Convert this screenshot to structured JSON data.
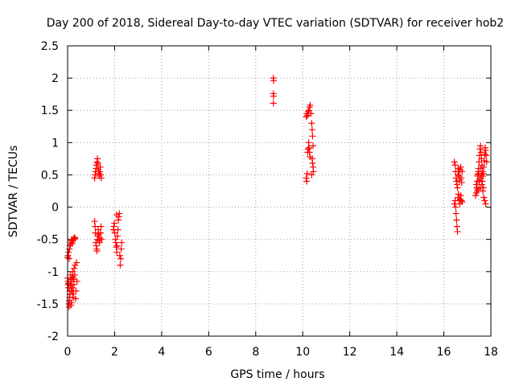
{
  "chart_data": {
    "type": "scatter",
    "title": "Day 200 of 2018, Sidereal Day-to-day VTEC variation (SDTVAR) for receiver hob2",
    "xlabel": "GPS time / hours",
    "ylabel": "SDTVAR / TECUs",
    "xlim": [
      0,
      18
    ],
    "ylim": [
      -2,
      2.5
    ],
    "xticks": [
      0,
      2,
      4,
      6,
      8,
      10,
      12,
      14,
      16,
      18
    ],
    "yticks": [
      -2,
      -1.5,
      -1,
      -0.5,
      0,
      0.5,
      1,
      1.5,
      2,
      2.5
    ],
    "xtick_labels": [
      "0",
      "2",
      "4",
      "6",
      "8",
      "10",
      "12",
      "14",
      "16",
      "18"
    ],
    "ytick_labels": [
      "-2",
      "-1.5",
      "-1",
      "-0.5",
      "0",
      "0.5",
      "1",
      "1.5",
      "2",
      "2.5"
    ],
    "grid": true,
    "marker": "+",
    "marker_color": "#ff0000",
    "series": [
      {
        "name": "SDTVAR",
        "points": [
          [
            0.0,
            -0.78
          ],
          [
            0.02,
            -0.75
          ],
          [
            0.04,
            -0.7
          ],
          [
            0.06,
            -0.8
          ],
          [
            0.08,
            -0.65
          ],
          [
            0.1,
            -0.6
          ],
          [
            0.12,
            -0.58
          ],
          [
            0.14,
            -0.55
          ],
          [
            0.16,
            -0.52
          ],
          [
            0.18,
            -0.5
          ],
          [
            0.2,
            -0.56
          ],
          [
            0.22,
            -0.52
          ],
          [
            0.25,
            -0.5
          ],
          [
            0.28,
            -0.48
          ],
          [
            0.3,
            -0.47
          ],
          [
            0.32,
            -0.49
          ],
          [
            0.0,
            -1.1
          ],
          [
            0.01,
            -1.15
          ],
          [
            0.02,
            -1.2
          ],
          [
            0.03,
            -1.25
          ],
          [
            0.04,
            -1.18
          ],
          [
            0.05,
            -1.5
          ],
          [
            0.06,
            -1.55
          ],
          [
            0.07,
            -1.45
          ],
          [
            0.08,
            -1.4
          ],
          [
            0.09,
            -1.3
          ],
          [
            0.1,
            -1.35
          ],
          [
            0.11,
            -1.22
          ],
          [
            0.12,
            -1.12
          ],
          [
            0.13,
            -1.05
          ],
          [
            0.14,
            -1.52
          ],
          [
            0.15,
            -1.48
          ],
          [
            0.16,
            -1.3
          ],
          [
            0.17,
            -1.2
          ],
          [
            0.18,
            -1.15
          ],
          [
            0.19,
            -1.1
          ],
          [
            0.2,
            -1.25
          ],
          [
            0.21,
            -1.35
          ],
          [
            0.22,
            -1.0
          ],
          [
            0.23,
            -1.08
          ],
          [
            0.24,
            -1.4
          ],
          [
            0.25,
            -1.3
          ],
          [
            0.26,
            -1.12
          ],
          [
            0.27,
            -1.2
          ],
          [
            0.28,
            -0.95
          ],
          [
            0.3,
            -1.05
          ],
          [
            0.32,
            -0.9
          ],
          [
            0.34,
            -1.42
          ],
          [
            0.36,
            -1.3
          ],
          [
            0.38,
            -0.86
          ],
          [
            0.4,
            -1.15
          ],
          [
            1.15,
            -0.22
          ],
          [
            1.17,
            -0.3
          ],
          [
            1.18,
            -0.4
          ],
          [
            1.2,
            -0.55
          ],
          [
            1.22,
            -0.6
          ],
          [
            1.24,
            -0.65
          ],
          [
            1.25,
            -0.68
          ],
          [
            1.27,
            -0.5
          ],
          [
            1.28,
            -0.45
          ],
          [
            1.3,
            -0.35
          ],
          [
            1.32,
            -0.42
          ],
          [
            1.34,
            -0.52
          ],
          [
            1.36,
            -0.55
          ],
          [
            1.38,
            -0.48
          ],
          [
            1.4,
            -0.4
          ],
          [
            1.42,
            -0.3
          ],
          [
            1.45,
            -0.5
          ],
          [
            1.15,
            0.45
          ],
          [
            1.17,
            0.5
          ],
          [
            1.19,
            0.55
          ],
          [
            1.21,
            0.6
          ],
          [
            1.23,
            0.65
          ],
          [
            1.25,
            0.7
          ],
          [
            1.27,
            0.75
          ],
          [
            1.29,
            0.68
          ],
          [
            1.31,
            0.58
          ],
          [
            1.33,
            0.52
          ],
          [
            1.35,
            0.48
          ],
          [
            1.37,
            0.55
          ],
          [
            1.39,
            0.62
          ],
          [
            1.41,
            0.5
          ],
          [
            1.43,
            0.45
          ],
          [
            1.95,
            -0.35
          ],
          [
            1.97,
            -0.3
          ],
          [
            1.99,
            -0.25
          ],
          [
            2.01,
            -0.4
          ],
          [
            2.03,
            -0.5
          ],
          [
            2.05,
            -0.55
          ],
          [
            2.07,
            -0.62
          ],
          [
            2.09,
            -0.7
          ],
          [
            2.1,
            -0.6
          ],
          [
            2.12,
            -0.45
          ],
          [
            2.14,
            -0.35
          ],
          [
            2.16,
            -0.2
          ],
          [
            2.18,
            -0.15
          ],
          [
            2.2,
            -0.1
          ],
          [
            2.22,
            -0.75
          ],
          [
            2.24,
            -0.9
          ],
          [
            2.26,
            -0.8
          ],
          [
            2.28,
            -0.65
          ],
          [
            2.3,
            -0.55
          ],
          [
            2.08,
            -0.12
          ],
          [
            8.75,
            2.0
          ],
          [
            8.76,
            1.96
          ],
          [
            8.75,
            1.76
          ],
          [
            8.76,
            1.72
          ],
          [
            8.75,
            1.61
          ],
          [
            10.15,
            0.45
          ],
          [
            10.17,
            0.4
          ],
          [
            10.19,
            0.52
          ],
          [
            10.21,
            0.85
          ],
          [
            10.23,
            0.9
          ],
          [
            10.25,
            1.0
          ],
          [
            10.27,
            0.92
          ],
          [
            10.29,
            0.85
          ],
          [
            10.31,
            0.78
          ],
          [
            10.15,
            1.4
          ],
          [
            10.18,
            1.45
          ],
          [
            10.2,
            1.42
          ],
          [
            10.23,
            1.48
          ],
          [
            10.26,
            1.5
          ],
          [
            10.29,
            1.55
          ],
          [
            10.32,
            1.58
          ],
          [
            10.35,
            1.45
          ],
          [
            10.38,
            1.3
          ],
          [
            10.4,
            1.2
          ],
          [
            10.42,
            1.1
          ],
          [
            10.44,
            0.95
          ],
          [
            10.4,
            0.75
          ],
          [
            10.42,
            0.68
          ],
          [
            10.44,
            0.62
          ],
          [
            10.45,
            0.55
          ],
          [
            10.38,
            0.5
          ],
          [
            16.45,
            0.7
          ],
          [
            16.48,
            0.65
          ],
          [
            16.5,
            0.55
          ],
          [
            16.52,
            0.45
          ],
          [
            16.54,
            0.4
          ],
          [
            16.56,
            0.35
          ],
          [
            16.58,
            0.3
          ],
          [
            16.6,
            0.5
          ],
          [
            16.62,
            0.6
          ],
          [
            16.64,
            0.55
          ],
          [
            16.66,
            0.48
          ],
          [
            16.68,
            0.42
          ],
          [
            16.7,
            0.58
          ],
          [
            16.72,
            0.62
          ],
          [
            16.74,
            0.45
          ],
          [
            16.76,
            0.38
          ],
          [
            16.78,
            0.55
          ],
          [
            16.45,
            0.05
          ],
          [
            16.48,
            0.1
          ],
          [
            16.5,
            0.0
          ],
          [
            16.52,
            -0.1
          ],
          [
            16.54,
            -0.2
          ],
          [
            16.56,
            -0.3
          ],
          [
            16.58,
            -0.38
          ],
          [
            16.6,
            0.15
          ],
          [
            16.62,
            0.2
          ],
          [
            16.65,
            0.1
          ],
          [
            16.68,
            0.05
          ],
          [
            16.7,
            0.12
          ],
          [
            16.72,
            0.18
          ],
          [
            16.75,
            0.1
          ],
          [
            16.78,
            0.08
          ],
          [
            17.35,
            0.18
          ],
          [
            17.38,
            0.22
          ],
          [
            17.4,
            0.3
          ],
          [
            17.42,
            0.4
          ],
          [
            17.44,
            0.5
          ],
          [
            17.46,
            0.55
          ],
          [
            17.48,
            0.6
          ],
          [
            17.5,
            0.7
          ],
          [
            17.52,
            0.8
          ],
          [
            17.54,
            0.9
          ],
          [
            17.56,
            0.95
          ],
          [
            17.58,
            0.85
          ],
          [
            17.6,
            0.75
          ],
          [
            17.62,
            0.65
          ],
          [
            17.64,
            0.55
          ],
          [
            17.66,
            0.48
          ],
          [
            17.68,
            0.52
          ],
          [
            17.7,
            0.62
          ],
          [
            17.72,
            0.72
          ],
          [
            17.74,
            0.82
          ],
          [
            17.76,
            0.92
          ],
          [
            17.78,
            0.88
          ],
          [
            17.8,
            0.8
          ],
          [
            17.82,
            0.7
          ],
          [
            17.38,
            0.35
          ],
          [
            17.42,
            0.25
          ],
          [
            17.46,
            0.28
          ],
          [
            17.5,
            0.4
          ],
          [
            17.54,
            0.3
          ],
          [
            17.58,
            0.45
          ],
          [
            17.62,
            0.35
          ],
          [
            17.66,
            0.25
          ],
          [
            17.7,
            0.15
          ],
          [
            17.74,
            0.1
          ],
          [
            17.78,
            0.05
          ],
          [
            17.44,
            0.48
          ],
          [
            17.48,
            0.52
          ],
          [
            17.52,
            0.42
          ],
          [
            17.56,
            0.6
          ],
          [
            17.6,
            0.5
          ],
          [
            17.64,
            0.4
          ],
          [
            17.68,
            0.3
          ]
        ]
      }
    ]
  }
}
